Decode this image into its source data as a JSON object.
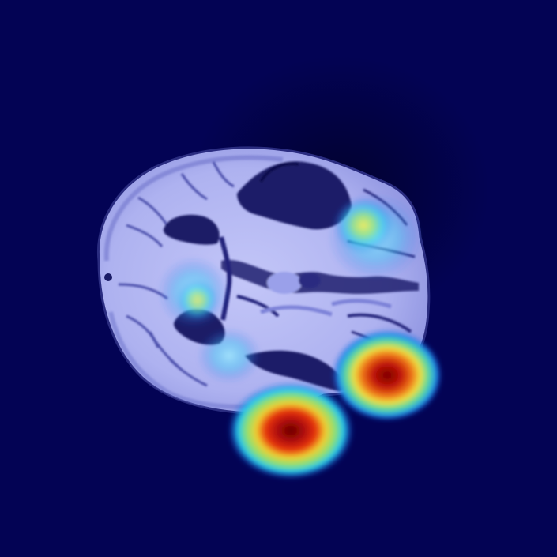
{
  "image": {
    "subject": "axial-brain-mri-slice-with-heatmap-overlay",
    "colors": {
      "background": "#030354",
      "tissue_light": "#b4b8f4",
      "tissue_mid": "#8f95e6",
      "tissue_dark": "#1e1f6e",
      "ventricle": "#141560",
      "heat_cool": "#22d0f2",
      "heat_warm": "#f4e64a",
      "heat_hot": "#e02010",
      "heat_max": "#7a0000"
    },
    "colormap": "jet"
  }
}
